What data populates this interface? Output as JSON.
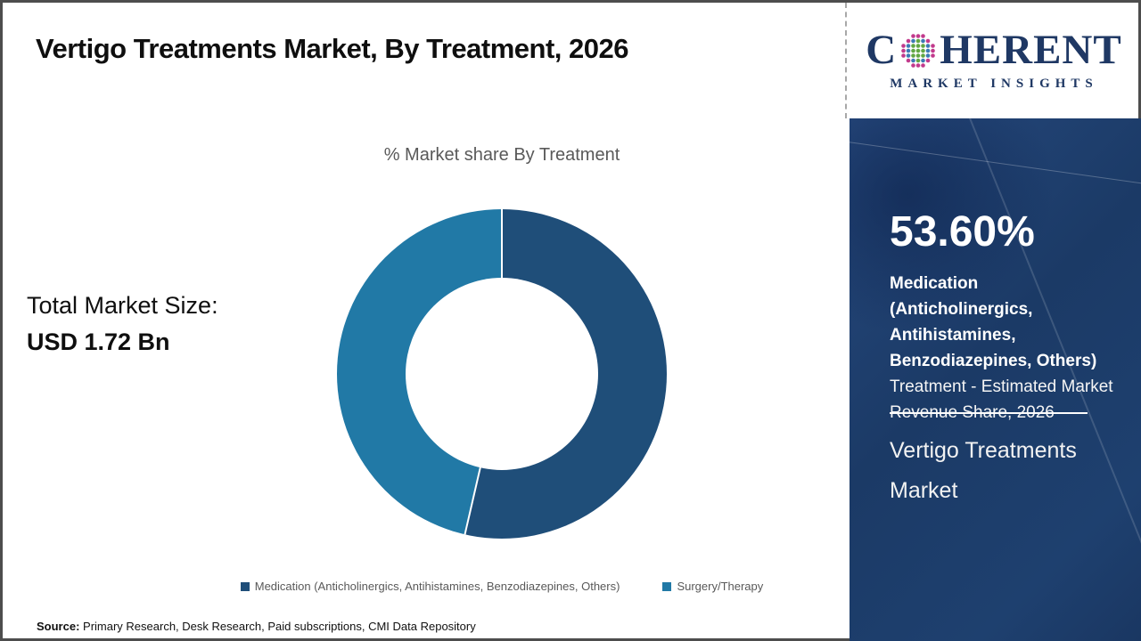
{
  "header": {
    "title": "Vertigo Treatments Market, By Treatment, 2026",
    "logo": {
      "first_letter": "C",
      "rest": "HERENT",
      "subtitle": "MARKET INSIGHTS"
    }
  },
  "main": {
    "total_label": "Total Market Size:",
    "total_value": "USD 1.72 Bn",
    "source_label": "Source:",
    "source_text": " Primary Research, Desk Research, Paid subscriptions, CMI Data Repository"
  },
  "chart_data": {
    "type": "pie",
    "subtype": "donut",
    "title": "% Market share By Treatment",
    "categories": [
      "Medication (Anticholinergics, Antihistamines, Benzodiazepines, Others)",
      "Surgery/Therapy"
    ],
    "values": [
      53.6,
      46.4
    ],
    "labels": [
      "53.6%",
      "46.4%"
    ],
    "colors": [
      "#1F4E79",
      "#2179A6"
    ],
    "legend_position": "bottom",
    "start_angle_deg": 0,
    "direction": "clockwise"
  },
  "side_panel": {
    "stat_value": "53.60%",
    "stat_bold": "Medication (Anticholinergics, Antihistamines, Benzodiazepines, Others)",
    "stat_regular": " Treatment - Estimated Market Revenue Share, 2026",
    "market_name": "Vertigo Treatments Market",
    "bg_color": "#1E3F6D"
  }
}
